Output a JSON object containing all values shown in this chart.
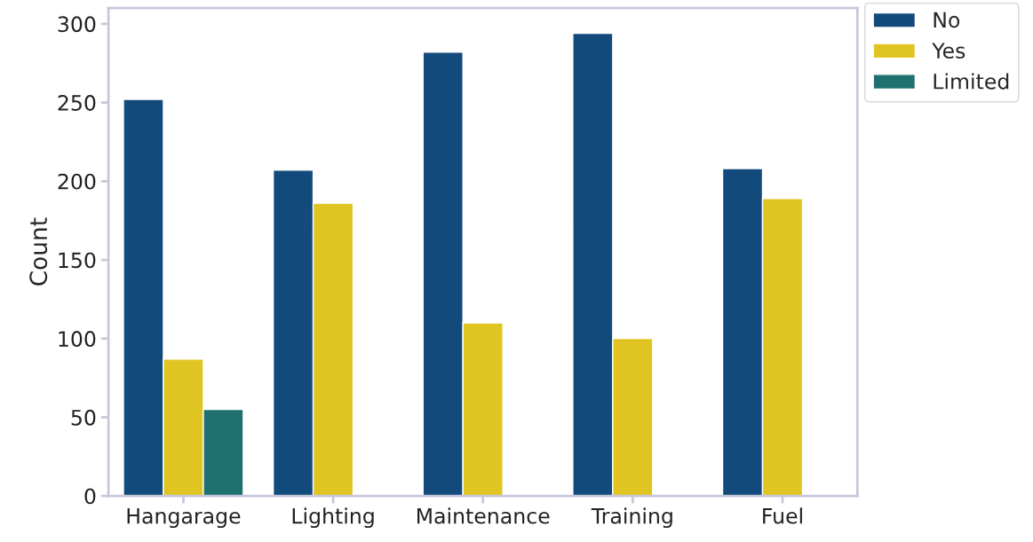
{
  "chart_data": {
    "type": "bar",
    "ylabel": "Count",
    "categories": [
      "Hangarage",
      "Lighting",
      "Maintenance",
      "Training",
      "Fuel"
    ],
    "series": [
      {
        "name": "No",
        "color": "#134a7c",
        "values": [
          252,
          207,
          282,
          294,
          208
        ]
      },
      {
        "name": "Yes",
        "color": "#e0c422",
        "values": [
          87,
          186,
          110,
          100,
          189
        ]
      },
      {
        "name": "Limited",
        "color": "#1f716f",
        "values": [
          55,
          null,
          null,
          null,
          null
        ]
      }
    ],
    "ylim": [
      0,
      310
    ],
    "yticks": [
      0,
      50,
      100,
      150,
      200,
      250,
      300
    ],
    "grid": false,
    "legend": "top right"
  }
}
